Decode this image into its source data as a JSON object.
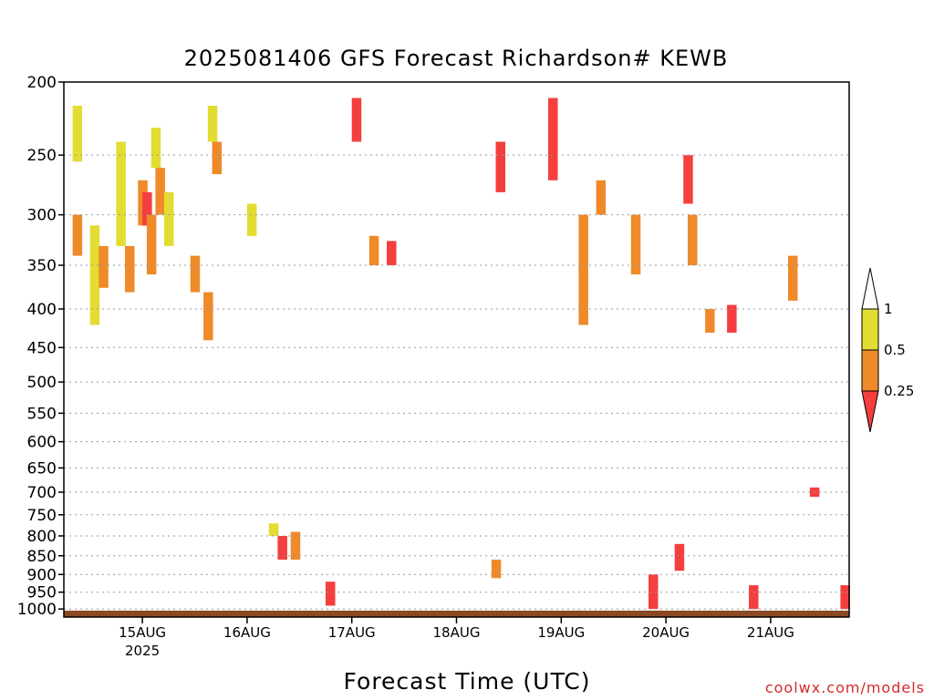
{
  "title": "2025081406 GFS Forecast Richardson# KEWB",
  "xlabel": "Forecast Time (UTC)",
  "credit": "coolwx.com/models",
  "colors": {
    "lt_0_25": "#f53e3e",
    "r_0_25_0_5": "#ee8a2a",
    "r_0_5_1": "#e3dc33",
    "ground": "#8b4a24",
    "grid": "#9a9a9a"
  },
  "chart_data": {
    "type": "heatmap",
    "title": "2025081406 GFS Forecast Richardson# KEWB",
    "xlabel": "Forecast Time (UTC)",
    "ylabel": "",
    "y_scale": "log",
    "y_inverted": true,
    "ylim": [
      1025,
      200
    ],
    "y_ticks": [
      200,
      250,
      300,
      350,
      400,
      450,
      500,
      550,
      600,
      650,
      700,
      750,
      800,
      850,
      900,
      950,
      1000
    ],
    "y_tick_labels": [
      "200",
      "250",
      "300",
      "350",
      "400",
      "450",
      "500",
      "550",
      "600",
      "650",
      "700",
      "750",
      "800",
      "850",
      "900",
      "950",
      "1000"
    ],
    "xlim": [
      "2025-08-14T06:00Z",
      "2025-08-21T18:00Z"
    ],
    "x_ticks": [
      "2025-08-15T00:00Z",
      "2025-08-16T00:00Z",
      "2025-08-17T00:00Z",
      "2025-08-18T00:00Z",
      "2025-08-19T00:00Z",
      "2025-08-20T00:00Z",
      "2025-08-21T00:00Z"
    ],
    "x_tick_labels": [
      "15AUG",
      "16AUG",
      "17AUG",
      "18AUG",
      "19AUG",
      "20AUG",
      "21AUG"
    ],
    "x_year_label": "2025",
    "grid": true,
    "legend": {
      "position": "right",
      "levels": [
        "0.25",
        "0.5",
        "1"
      ],
      "classes": [
        {
          "range": "< 0.25",
          "color": "#f53e3e"
        },
        {
          "range": "0.25-0.5",
          "color": "#ee8a2a"
        },
        {
          "range": "0.5-1",
          "color": "#e3dc33"
        },
        {
          "range": "> 1",
          "color": "#ffffff"
        }
      ]
    },
    "ground_level_hpa": 1005,
    "cells": [
      {
        "t": "2025-08-14T08:00Z",
        "p1": 215,
        "p2": 255,
        "cls": "y"
      },
      {
        "t": "2025-08-14T08:00Z",
        "p1": 300,
        "p2": 340,
        "cls": "o"
      },
      {
        "t": "2025-08-14T12:00Z",
        "p1": 310,
        "p2": 420,
        "cls": "y"
      },
      {
        "t": "2025-08-14T14:00Z",
        "p1": 330,
        "p2": 375,
        "cls": "o"
      },
      {
        "t": "2025-08-14T18:00Z",
        "p1": 240,
        "p2": 330,
        "cls": "y"
      },
      {
        "t": "2025-08-14T20:00Z",
        "p1": 330,
        "p2": 380,
        "cls": "o"
      },
      {
        "t": "2025-08-14T23:00Z",
        "p1": 270,
        "p2": 310,
        "cls": "o"
      },
      {
        "t": "2025-08-15T00:00Z",
        "p1": 280,
        "p2": 310,
        "cls": "r"
      },
      {
        "t": "2025-08-15T01:00Z",
        "p1": 300,
        "p2": 360,
        "cls": "o"
      },
      {
        "t": "2025-08-15T02:00Z",
        "p1": 230,
        "p2": 260,
        "cls": "y"
      },
      {
        "t": "2025-08-15T03:00Z",
        "p1": 260,
        "p2": 300,
        "cls": "o"
      },
      {
        "t": "2025-08-15T05:00Z",
        "p1": 280,
        "p2": 330,
        "cls": "y"
      },
      {
        "t": "2025-08-15T11:00Z",
        "p1": 340,
        "p2": 380,
        "cls": "o"
      },
      {
        "t": "2025-08-15T14:00Z",
        "p1": 380,
        "p2": 440,
        "cls": "o"
      },
      {
        "t": "2025-08-15T15:00Z",
        "p1": 215,
        "p2": 240,
        "cls": "y"
      },
      {
        "t": "2025-08-15T16:00Z",
        "p1": 240,
        "p2": 265,
        "cls": "o"
      },
      {
        "t": "2025-08-16T00:00Z",
        "p1": 290,
        "p2": 320,
        "cls": "y"
      },
      {
        "t": "2025-08-16T05:00Z",
        "p1": 770,
        "p2": 800,
        "cls": "y"
      },
      {
        "t": "2025-08-16T07:00Z",
        "p1": 800,
        "p2": 860,
        "cls": "r"
      },
      {
        "t": "2025-08-16T10:00Z",
        "p1": 790,
        "p2": 860,
        "cls": "o"
      },
      {
        "t": "2025-08-16T18:00Z",
        "p1": 920,
        "p2": 990,
        "cls": "r"
      },
      {
        "t": "2025-08-17T00:00Z",
        "p1": 210,
        "p2": 240,
        "cls": "r"
      },
      {
        "t": "2025-08-17T04:00Z",
        "p1": 320,
        "p2": 350,
        "cls": "o"
      },
      {
        "t": "2025-08-17T08:00Z",
        "p1": 325,
        "p2": 350,
        "cls": "r"
      },
      {
        "t": "2025-08-18T08:00Z",
        "p1": 860,
        "p2": 910,
        "cls": "o"
      },
      {
        "t": "2025-08-18T09:00Z",
        "p1": 240,
        "p2": 280,
        "cls": "r"
      },
      {
        "t": "2025-08-18T21:00Z",
        "p1": 210,
        "p2": 270,
        "cls": "r"
      },
      {
        "t": "2025-08-19T04:00Z",
        "p1": 300,
        "p2": 420,
        "cls": "o"
      },
      {
        "t": "2025-08-19T08:00Z",
        "p1": 270,
        "p2": 300,
        "cls": "o"
      },
      {
        "t": "2025-08-19T16:00Z",
        "p1": 300,
        "p2": 360,
        "cls": "o"
      },
      {
        "t": "2025-08-19T20:00Z",
        "p1": 900,
        "p2": 1000,
        "cls": "r"
      },
      {
        "t": "2025-08-20T02:00Z",
        "p1": 820,
        "p2": 890,
        "cls": "r"
      },
      {
        "t": "2025-08-20T04:00Z",
        "p1": 250,
        "p2": 290,
        "cls": "r"
      },
      {
        "t": "2025-08-20T05:00Z",
        "p1": 300,
        "p2": 350,
        "cls": "o"
      },
      {
        "t": "2025-08-20T09:00Z",
        "p1": 400,
        "p2": 430,
        "cls": "o"
      },
      {
        "t": "2025-08-20T14:00Z",
        "p1": 395,
        "p2": 430,
        "cls": "r"
      },
      {
        "t": "2025-08-20T19:00Z",
        "p1": 930,
        "p2": 1000,
        "cls": "r"
      },
      {
        "t": "2025-08-21T04:00Z",
        "p1": 340,
        "p2": 390,
        "cls": "o"
      },
      {
        "t": "2025-08-21T09:00Z",
        "p1": 690,
        "p2": 710,
        "cls": "r"
      },
      {
        "t": "2025-08-21T16:00Z",
        "p1": 930,
        "p2": 1000,
        "cls": "r"
      }
    ]
  }
}
